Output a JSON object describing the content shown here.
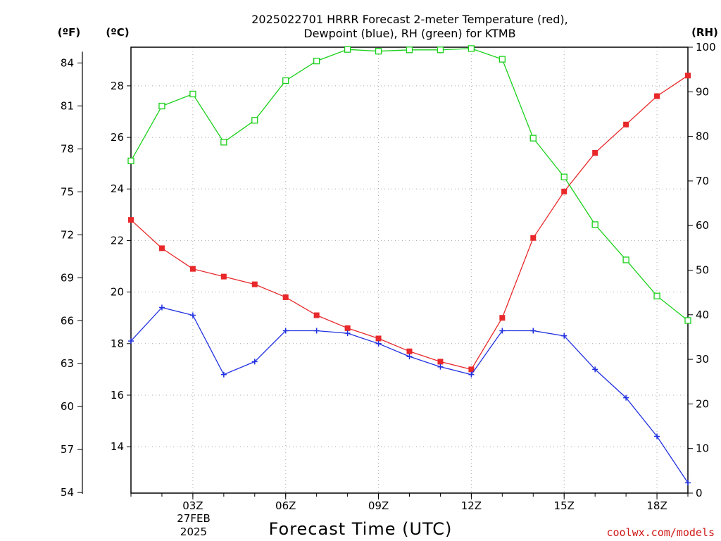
{
  "chart_data": {
    "type": "line",
    "title_lines": [
      "2025022701 HRRR Forecast 2-meter Temperature (red),",
      "Dewpoint (blue), RH (green) for KTMB"
    ],
    "xlabel": "Forecast Time (UTC)",
    "x": [
      1,
      2,
      3,
      4,
      5,
      6,
      7,
      8,
      9,
      10,
      11,
      12,
      13,
      14,
      15,
      16,
      17,
      18,
      19
    ],
    "x_tick_values": [
      3,
      6,
      9,
      12,
      15,
      18
    ],
    "x_tick_labels": [
      "03Z",
      "06Z",
      "09Z",
      "12Z",
      "15Z",
      "18Z"
    ],
    "x_date_lines": [
      "27FEB",
      "2025"
    ],
    "xlim": [
      1,
      19
    ],
    "y_left_celsius": {
      "unit_label": "(ºC)",
      "ylim": [
        12.2,
        29.5
      ],
      "ticks": [
        14,
        16,
        18,
        20,
        22,
        24,
        26,
        28
      ]
    },
    "y_left_fahrenheit": {
      "unit_label": "(ºF)",
      "ticks": [
        54,
        57,
        60,
        63,
        66,
        69,
        72,
        75,
        78,
        81,
        84
      ]
    },
    "y_right_rh": {
      "unit_label": "(RH)",
      "ylim": [
        0,
        100
      ],
      "ticks": [
        0,
        10,
        20,
        30,
        40,
        50,
        60,
        70,
        80,
        90,
        100
      ]
    },
    "grid": true,
    "series": [
      {
        "axis": "celsius",
        "color": "#e8282a",
        "marker": "filled-square",
        "values": [
          22.8,
          21.7,
          20.9,
          20.6,
          20.3,
          19.8,
          19.1,
          18.6,
          18.2,
          17.7,
          17.3,
          17.0,
          19.0,
          22.1,
          23.9,
          25.4,
          26.5,
          27.6,
          28.4
        ]
      },
      {
        "axis": "celsius",
        "color": "#2030e0",
        "marker": "plus",
        "values": [
          18.1,
          19.4,
          19.1,
          16.8,
          17.3,
          18.5,
          18.5,
          18.4,
          18.0,
          17.5,
          17.1,
          16.8,
          18.5,
          18.5,
          18.3,
          17.0,
          15.9,
          14.4,
          12.6
        ]
      },
      {
        "axis": "rh",
        "color": "#18d018",
        "marker": "open-square",
        "values": [
          74.5,
          86.8,
          89.5,
          78.7,
          83.6,
          92.5,
          96.9,
          99.5,
          99.1,
          99.4,
          99.4,
          99.7,
          97.3,
          79.6,
          70.9,
          60.2,
          52.3,
          44.2,
          38.7
        ]
      }
    ]
  },
  "credit": "coolwx.com/models"
}
